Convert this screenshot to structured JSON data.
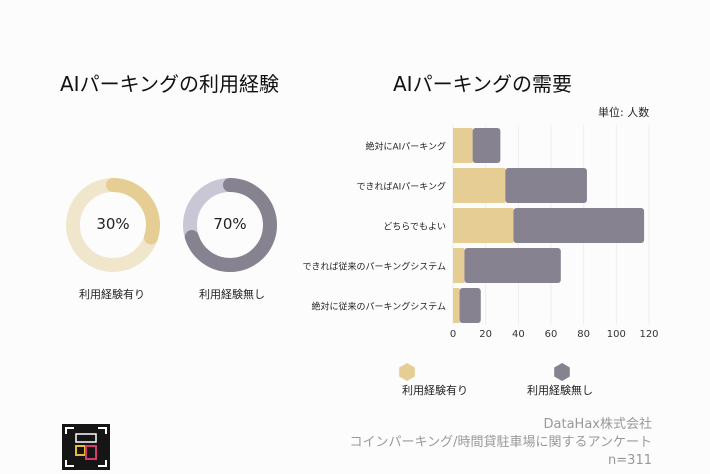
{
  "left_title": "AIパーキングの利用経験",
  "right_title": "AIパーキングの需要",
  "unit_label": "単位: 人数",
  "donuts": [
    {
      "label": "利用経験有り",
      "value_text": "30%",
      "percent": 30,
      "fg": "#e6cd94",
      "bg": "#efe6cc"
    },
    {
      "label": "利用経験無し",
      "value_text": "70%",
      "percent": 70,
      "fg": "#86828f",
      "bg": "#c9c6d6"
    }
  ],
  "chart_data": {
    "type": "bar",
    "orientation": "horizontal",
    "stacked": true,
    "title": "AIパーキングの需要",
    "categories": [
      "絶対にAIパーキング",
      "できればAIパーキング",
      "どちらでもよい",
      "できれば従来のパーキングシステム",
      "絶対に従来のパーキングシステム"
    ],
    "series": [
      {
        "name": "利用経験有り",
        "color": "#e6cd94",
        "values": [
          12,
          32,
          37,
          7,
          4
        ]
      },
      {
        "name": "利用経験無し",
        "color": "#86828f",
        "values": [
          17,
          50,
          80,
          59,
          13
        ]
      }
    ],
    "xlim": [
      0,
      120
    ],
    "xticks": [
      "0",
      "20",
      "40",
      "60",
      "80",
      "100",
      "120"
    ],
    "grid": true,
    "legend": "bottom"
  },
  "footer": {
    "company": "DataHax株式会社",
    "survey": "コインパーキング/時間貸駐車場に関するアンケート",
    "n": "n=311"
  }
}
